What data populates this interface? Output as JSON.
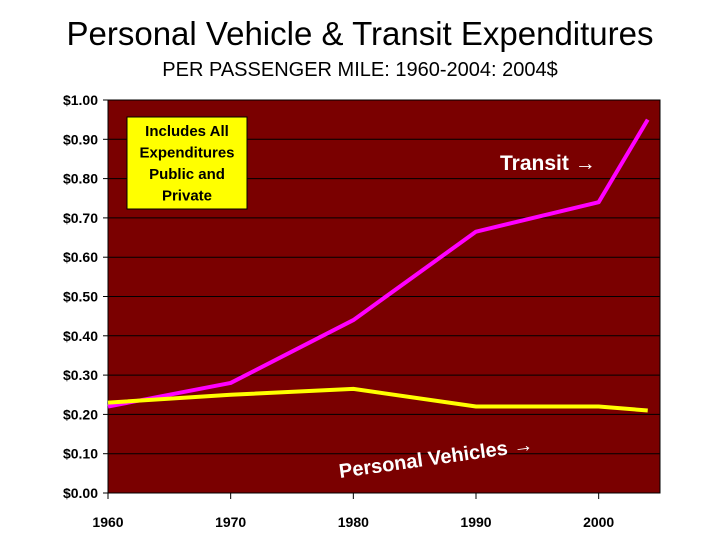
{
  "title": "Personal Vehicle & Transit Expenditures",
  "subtitle": "PER PASSENGER MILE: 1960-2004: 2004$",
  "colors": {
    "plot_background": "#7a0000",
    "transit": "#ff00ff",
    "personal": "#ffff00",
    "note_box": "#ffff00"
  },
  "note_box_lines": [
    "Includes All",
    "Expenditures",
    "Public and",
    "Private"
  ],
  "chart_data": {
    "type": "line",
    "title": "Personal Vehicle & Transit Expenditures",
    "subtitle": "PER PASSENGER MILE: 1960-2004: 2004$",
    "xlabel": "",
    "ylabel": "",
    "xlim": [
      1960,
      2004
    ],
    "ylim": [
      0,
      1.0
    ],
    "x_ticks": [
      1960,
      1970,
      1980,
      1990,
      2000
    ],
    "x_tick_labels": [
      "1960",
      "1970",
      "1980",
      "1990",
      "2000"
    ],
    "y_ticks": [
      0,
      0.1,
      0.2,
      0.3,
      0.4,
      0.5,
      0.6,
      0.7,
      0.8,
      0.9,
      1.0
    ],
    "y_tick_labels": [
      "$0.00",
      "$0.10",
      "$0.20",
      "$0.30",
      "$0.40",
      "$0.50",
      "$0.60",
      "$0.70",
      "$0.80",
      "$0.90",
      "$1.00"
    ],
    "grid": "horizontal",
    "series": [
      {
        "name": "Transit",
        "label": "Transit →",
        "color": "#ff00ff",
        "x": [
          1960,
          1970,
          1980,
          1990,
          2000,
          2004
        ],
        "values": [
          0.22,
          0.28,
          0.44,
          0.665,
          0.74,
          0.95
        ]
      },
      {
        "name": "Personal Vehicles",
        "label": "Personal Vehicles →",
        "color": "#ffff00",
        "x": [
          1960,
          1970,
          1980,
          1990,
          2000,
          2004
        ],
        "values": [
          0.23,
          0.25,
          0.265,
          0.22,
          0.22,
          0.21
        ]
      }
    ]
  }
}
